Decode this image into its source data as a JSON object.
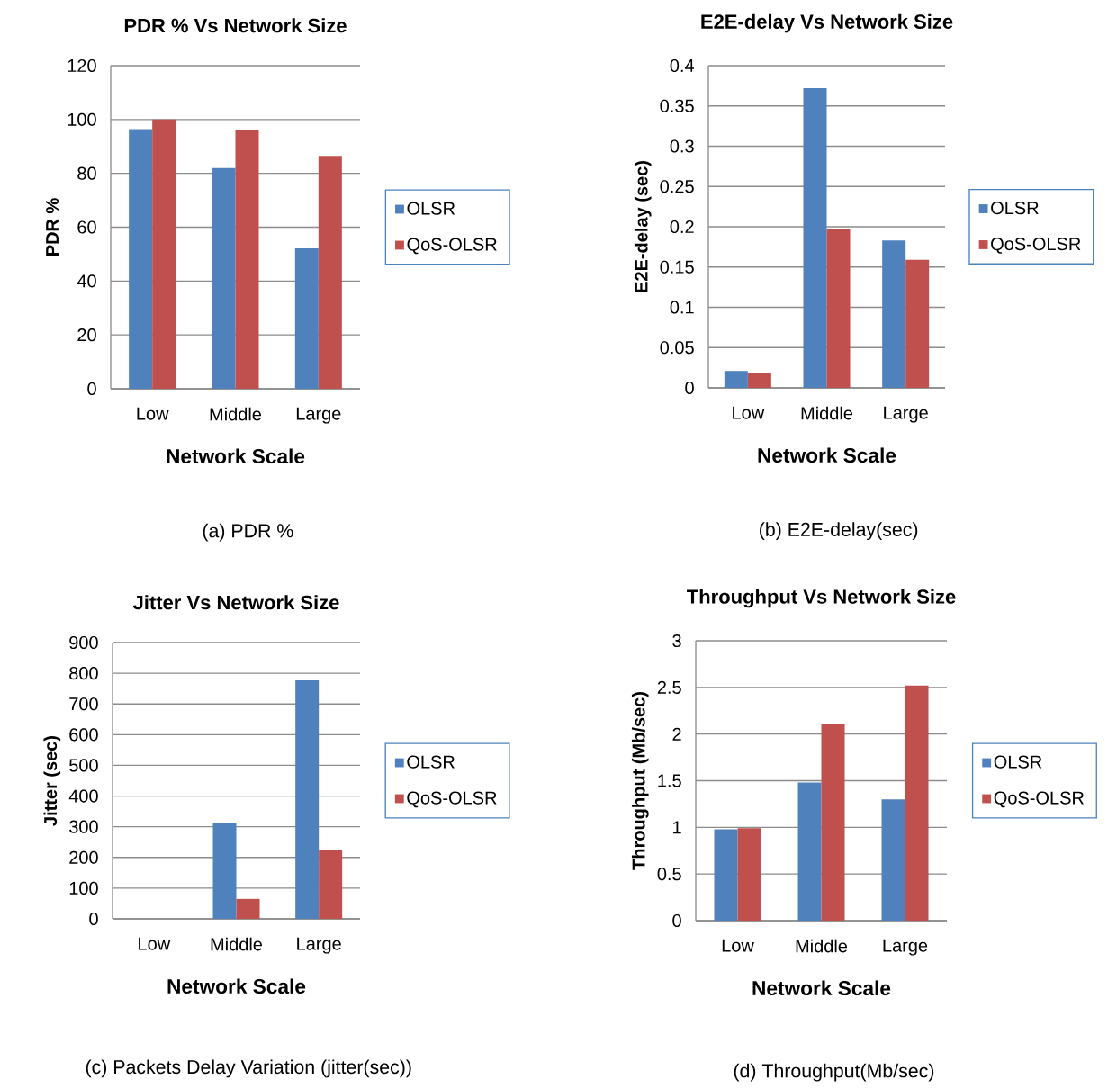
{
  "chart_data": [
    {
      "type": "bar",
      "title": "PDR % Vs Network Size",
      "xlabel": "Network Scale",
      "ylabel": "PDR %",
      "categories": [
        "Low",
        "Middle",
        "Large"
      ],
      "series": [
        {
          "name": "OLSR",
          "color": "#4f81bd",
          "values": [
            96.4,
            82,
            52.1
          ]
        },
        {
          "name": "QoS-OLSR",
          "color": "#c0504d",
          "values": [
            100,
            95.9,
            86.5
          ]
        }
      ],
      "ylim": [
        0,
        120
      ],
      "yticks": [
        0,
        20,
        40,
        60,
        80,
        100,
        120
      ],
      "grid": "y",
      "legend": "right",
      "annotations": [
        "(a)  PDR %"
      ]
    },
    {
      "type": "bar",
      "title": "E2E-delay Vs Network Size",
      "xlabel": "Network Scale",
      "ylabel": "E2E-delay (sec)",
      "categories": [
        "Low",
        "Middle",
        "Large"
      ],
      "series": [
        {
          "name": "OLSR",
          "color": "#4f81bd",
          "values": [
            0.021,
            0.372,
            0.183
          ]
        },
        {
          "name": "QoS-OLSR",
          "color": "#c0504d",
          "values": [
            0.018,
            0.197,
            0.159
          ]
        }
      ],
      "ylim": [
        0,
        0.4
      ],
      "yticks": [
        0,
        0.05,
        0.1,
        0.15,
        0.2,
        0.25,
        0.3,
        0.35,
        0.4
      ],
      "grid": "y",
      "legend": "right",
      "annotations": [
        "(b)  E2E-delay(sec)"
      ]
    },
    {
      "type": "bar",
      "title": "Jitter Vs Network Size",
      "xlabel": "Network Scale",
      "ylabel": "Jitter (sec)",
      "categories": [
        "Low",
        "Middle",
        "Large"
      ],
      "series": [
        {
          "name": "OLSR",
          "color": "#4f81bd",
          "values": [
            0,
            312,
            777
          ]
        },
        {
          "name": "QoS-OLSR",
          "color": "#c0504d",
          "values": [
            0,
            65,
            226
          ]
        }
      ],
      "ylim": [
        0,
        900
      ],
      "yticks": [
        0,
        100,
        200,
        300,
        400,
        500,
        600,
        700,
        800,
        900
      ],
      "grid": "y",
      "legend": "right",
      "annotations": [
        "(c)  Packets Delay Variation (jitter(sec))"
      ]
    },
    {
      "type": "bar",
      "title": "Throughput Vs Network Size",
      "xlabel": "Network Scale",
      "ylabel": "Throughput (Mb/sec)",
      "categories": [
        "Low",
        "Middle",
        "Large"
      ],
      "series": [
        {
          "name": "OLSR",
          "color": "#4f81bd",
          "values": [
            0.98,
            1.48,
            1.3
          ]
        },
        {
          "name": "QoS-OLSR",
          "color": "#c0504d",
          "values": [
            0.99,
            2.11,
            2.52
          ]
        }
      ],
      "ylim": [
        0,
        3
      ],
      "yticks": [
        0,
        0.5,
        1,
        1.5,
        2,
        2.5,
        3
      ],
      "grid": "y",
      "legend": "right",
      "annotations": [
        "(d)  Throughput(Mb/sec)"
      ]
    }
  ]
}
